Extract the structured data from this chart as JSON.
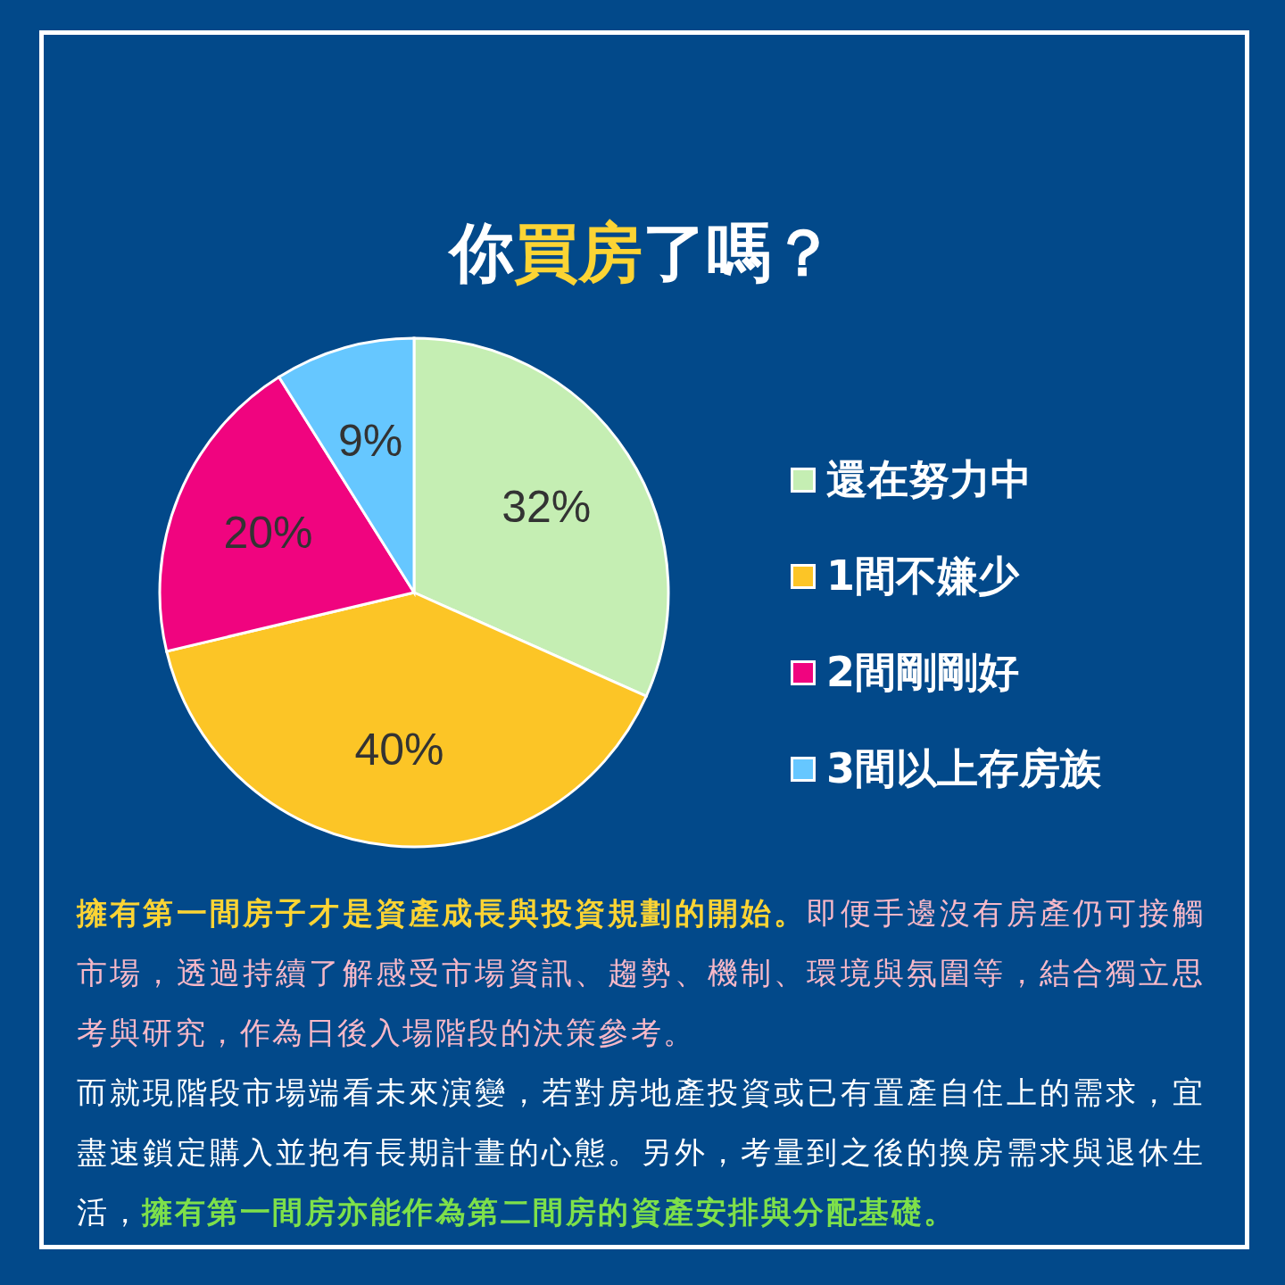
{
  "chart_data": {
    "type": "pie",
    "title": "你買房了嗎？",
    "categories": [
      "還在努力中",
      "1間不嫌少",
      "2間剛剛好",
      "3間以上存房族"
    ],
    "values": [
      32,
      40,
      20,
      9
    ],
    "colors": [
      "#c5eeb3",
      "#fcc526",
      "#f0047f",
      "#66c7ff"
    ],
    "value_labels": [
      "32%",
      "40%",
      "20%",
      "9%"
    ],
    "legend": "right",
    "annotations": [
      "擁有第一間房子才是資產成長與投資規劃的開始。",
      "即便手邊沒有房產仍可接觸市場，透過持續了解感受市場資訊、趨勢、機制、環境與氛圍等，結合獨立思考與研究，作為日後入場階段的決策參考。",
      "而就現階段市場端看未來演變，若對房地產投資或已有置產自住上的需求，宜盡速鎖定購入並抱有長期計畫的心態。另外，考量到之後的換房需求與退休生活，",
      "擁有第一間房亦能作為第二間房的資產安排與分配基礎。"
    ]
  }
}
